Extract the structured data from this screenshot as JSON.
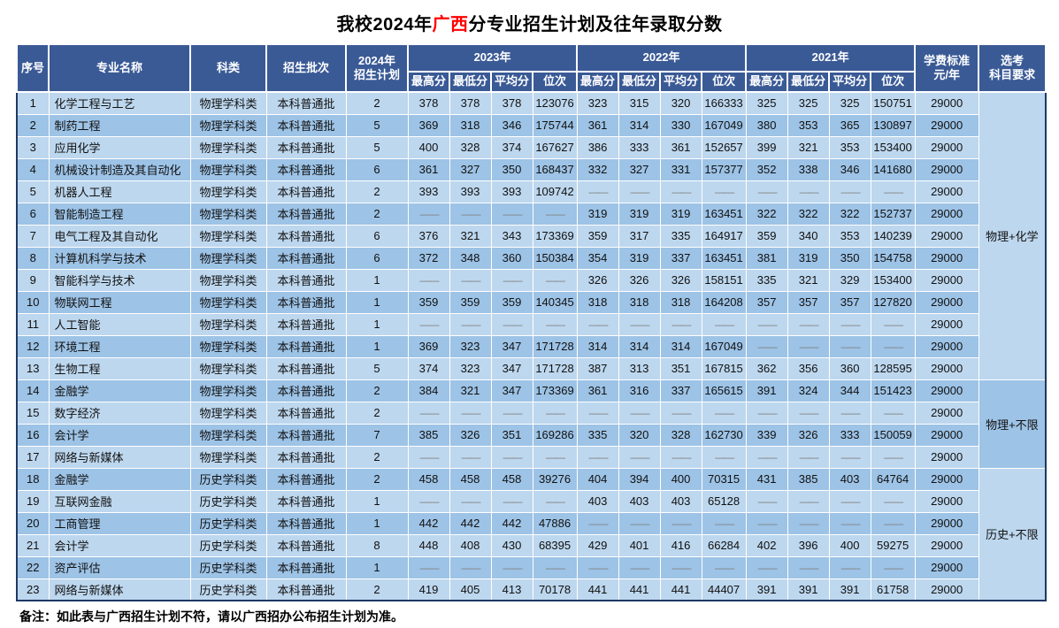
{
  "title": {
    "prefix": "我校2024年",
    "highlight": "广西",
    "suffix": "分专业招生计划及往年录取分数"
  },
  "colors": {
    "header_bg": "#3A5A96",
    "row_light": "#BDD7EE",
    "row_medium": "#9DC3E6",
    "outer_border": "#1F3864",
    "title_highlight": "#FF0000",
    "dash_gray": "#7F7F7F"
  },
  "header": {
    "seq": "序号",
    "major": "专业名称",
    "category": "科类",
    "batch": "招生批次",
    "plan_line1": "2024年",
    "plan_line2": "招生计划",
    "year_2023": "2023年",
    "year_2022": "2022年",
    "year_2021": "2021年",
    "sub_labels": [
      "最高分",
      "最低分",
      "平均分",
      "位次"
    ],
    "fee_line1": "学费标准",
    "fee_line2": "元/年",
    "req_line1": "选考",
    "req_line2": "科目要求"
  },
  "subject_groups": [
    {
      "label": "物理+化学",
      "start": 1,
      "span": 13,
      "tone": "light"
    },
    {
      "label": "物理+不限",
      "start": 14,
      "span": 4,
      "tone": "medium"
    },
    {
      "label": "历史+不限",
      "start": 18,
      "span": 6,
      "tone": "light"
    }
  ],
  "rows": [
    {
      "seq": "1",
      "major": "化学工程与工艺",
      "category": "物理学科类",
      "batch": "本科普通批",
      "plan": "2",
      "y2023": [
        "378",
        "378",
        "378",
        "123076"
      ],
      "y2022": [
        "323",
        "315",
        "320",
        "166333"
      ],
      "y2021": [
        "325",
        "325",
        "325",
        "150751"
      ],
      "fee": "29000"
    },
    {
      "seq": "2",
      "major": "制药工程",
      "category": "物理学科类",
      "batch": "本科普通批",
      "plan": "5",
      "y2023": [
        "369",
        "318",
        "346",
        "175744"
      ],
      "y2022": [
        "361",
        "314",
        "330",
        "167049"
      ],
      "y2021": [
        "380",
        "353",
        "365",
        "130897"
      ],
      "fee": "29000"
    },
    {
      "seq": "3",
      "major": "应用化学",
      "category": "物理学科类",
      "batch": "本科普通批",
      "plan": "5",
      "y2023": [
        "400",
        "328",
        "374",
        "167627"
      ],
      "y2022": [
        "386",
        "333",
        "361",
        "152657"
      ],
      "y2021": [
        "399",
        "321",
        "353",
        "153400"
      ],
      "fee": "29000"
    },
    {
      "seq": "4",
      "major": "机械设计制造及其自动化",
      "category": "物理学科类",
      "batch": "本科普通批",
      "plan": "6",
      "y2023": [
        "361",
        "327",
        "350",
        "168437"
      ],
      "y2022": [
        "332",
        "327",
        "331",
        "157377"
      ],
      "y2021": [
        "352",
        "338",
        "346",
        "141680"
      ],
      "fee": "29000"
    },
    {
      "seq": "5",
      "major": "机器人工程",
      "category": "物理学科类",
      "batch": "本科普通批",
      "plan": "2",
      "y2023": [
        "393",
        "393",
        "393",
        "109742"
      ],
      "y2022": [
        "——",
        "——",
        "——",
        "——"
      ],
      "y2021": [
        "——",
        "——",
        "——",
        "——"
      ],
      "fee": "29000"
    },
    {
      "seq": "6",
      "major": "智能制造工程",
      "category": "物理学科类",
      "batch": "本科普通批",
      "plan": "2",
      "y2023": [
        "——",
        "——",
        "——",
        "——"
      ],
      "y2022": [
        "319",
        "319",
        "319",
        "163451"
      ],
      "y2021": [
        "322",
        "322",
        "322",
        "152737"
      ],
      "fee": "29000"
    },
    {
      "seq": "7",
      "major": "电气工程及其自动化",
      "category": "物理学科类",
      "batch": "本科普通批",
      "plan": "6",
      "y2023": [
        "376",
        "321",
        "343",
        "173369"
      ],
      "y2022": [
        "359",
        "317",
        "335",
        "164917"
      ],
      "y2021": [
        "359",
        "340",
        "353",
        "140239"
      ],
      "fee": "29000"
    },
    {
      "seq": "8",
      "major": "计算机科学与技术",
      "category": "物理学科类",
      "batch": "本科普通批",
      "plan": "6",
      "y2023": [
        "372",
        "348",
        "360",
        "150384"
      ],
      "y2022": [
        "354",
        "319",
        "337",
        "163451"
      ],
      "y2021": [
        "381",
        "319",
        "350",
        "154758"
      ],
      "fee": "29000"
    },
    {
      "seq": "9",
      "major": "智能科学与技术",
      "category": "物理学科类",
      "batch": "本科普通批",
      "plan": "1",
      "y2023": [
        "——",
        "——",
        "——",
        "——"
      ],
      "y2022": [
        "326",
        "326",
        "326",
        "158151"
      ],
      "y2021": [
        "335",
        "321",
        "329",
        "153400"
      ],
      "fee": "29000"
    },
    {
      "seq": "10",
      "major": "物联网工程",
      "category": "物理学科类",
      "batch": "本科普通批",
      "plan": "1",
      "y2023": [
        "359",
        "359",
        "359",
        "140345"
      ],
      "y2022": [
        "318",
        "318",
        "318",
        "164208"
      ],
      "y2021": [
        "357",
        "357",
        "357",
        "127820"
      ],
      "fee": "29000"
    },
    {
      "seq": "11",
      "major": "人工智能",
      "category": "物理学科类",
      "batch": "本科普通批",
      "plan": "1",
      "y2023": [
        "——",
        "——",
        "——",
        "——"
      ],
      "y2022": [
        "——",
        "——",
        "——",
        "——"
      ],
      "y2021": [
        "——",
        "——",
        "——",
        "——"
      ],
      "fee": "29000"
    },
    {
      "seq": "12",
      "major": "环境工程",
      "category": "物理学科类",
      "batch": "本科普通批",
      "plan": "1",
      "y2023": [
        "369",
        "323",
        "347",
        "171728"
      ],
      "y2022": [
        "314",
        "314",
        "314",
        "167049"
      ],
      "y2021": [
        "——",
        "——",
        "——",
        "——"
      ],
      "fee": "29000"
    },
    {
      "seq": "13",
      "major": "生物工程",
      "category": "物理学科类",
      "batch": "本科普通批",
      "plan": "5",
      "y2023": [
        "374",
        "323",
        "347",
        "171728"
      ],
      "y2022": [
        "387",
        "313",
        "351",
        "167815"
      ],
      "y2021": [
        "362",
        "356",
        "360",
        "128595"
      ],
      "fee": "29000"
    },
    {
      "seq": "14",
      "major": "金融学",
      "category": "物理学科类",
      "batch": "本科普通批",
      "plan": "2",
      "y2023": [
        "384",
        "321",
        "347",
        "173369"
      ],
      "y2022": [
        "361",
        "316",
        "337",
        "165615"
      ],
      "y2021": [
        "391",
        "324",
        "344",
        "151423"
      ],
      "fee": "29000"
    },
    {
      "seq": "15",
      "major": "数字经济",
      "category": "物理学科类",
      "batch": "本科普通批",
      "plan": "2",
      "y2023": [
        "——",
        "——",
        "——",
        "——"
      ],
      "y2022": [
        "——",
        "——",
        "——",
        "——"
      ],
      "y2021": [
        "——",
        "——",
        "——",
        "——"
      ],
      "fee": "29000"
    },
    {
      "seq": "16",
      "major": "会计学",
      "category": "物理学科类",
      "batch": "本科普通批",
      "plan": "7",
      "y2023": [
        "385",
        "326",
        "351",
        "169286"
      ],
      "y2022": [
        "335",
        "320",
        "328",
        "162730"
      ],
      "y2021": [
        "339",
        "326",
        "333",
        "150059"
      ],
      "fee": "29000"
    },
    {
      "seq": "17",
      "major": "网络与新媒体",
      "category": "物理学科类",
      "batch": "本科普通批",
      "plan": "2",
      "y2023": [
        "——",
        "——",
        "——",
        "——"
      ],
      "y2022": [
        "——",
        "——",
        "——",
        "——"
      ],
      "y2021": [
        "——",
        "——",
        "——",
        "——"
      ],
      "fee": "29000"
    },
    {
      "seq": "18",
      "major": "金融学",
      "category": "历史学科类",
      "batch": "本科普通批",
      "plan": "2",
      "y2023": [
        "458",
        "458",
        "458",
        "39276"
      ],
      "y2022": [
        "404",
        "394",
        "400",
        "70315"
      ],
      "y2021": [
        "431",
        "385",
        "403",
        "64764"
      ],
      "fee": "29000"
    },
    {
      "seq": "19",
      "major": "互联网金融",
      "category": "历史学科类",
      "batch": "本科普通批",
      "plan": "1",
      "y2023": [
        "——",
        "——",
        "——",
        "——"
      ],
      "y2022": [
        "403",
        "403",
        "403",
        "65128"
      ],
      "y2021": [
        "——",
        "——",
        "——",
        "——"
      ],
      "fee": "29000"
    },
    {
      "seq": "20",
      "major": "工商管理",
      "category": "历史学科类",
      "batch": "本科普通批",
      "plan": "1",
      "y2023": [
        "442",
        "442",
        "442",
        "47886"
      ],
      "y2022": [
        "——",
        "——",
        "——",
        "——"
      ],
      "y2021": [
        "——",
        "——",
        "——",
        "——"
      ],
      "fee": "29000"
    },
    {
      "seq": "21",
      "major": "会计学",
      "category": "历史学科类",
      "batch": "本科普通批",
      "plan": "8",
      "y2023": [
        "448",
        "408",
        "430",
        "68395"
      ],
      "y2022": [
        "429",
        "401",
        "416",
        "66284"
      ],
      "y2021": [
        "402",
        "396",
        "400",
        "59275"
      ],
      "fee": "29000"
    },
    {
      "seq": "22",
      "major": "资产评估",
      "category": "历史学科类",
      "batch": "本科普通批",
      "plan": "1",
      "y2023": [
        "——",
        "——",
        "——",
        "——"
      ],
      "y2022": [
        "——",
        "——",
        "——",
        "——"
      ],
      "y2021": [
        "——",
        "——",
        "——",
        "——"
      ],
      "fee": "29000"
    },
    {
      "seq": "23",
      "major": "网络与新媒体",
      "category": "历史学科类",
      "batch": "本科普通批",
      "plan": "2",
      "y2023": [
        "419",
        "405",
        "413",
        "70178"
      ],
      "y2022": [
        "441",
        "441",
        "441",
        "44407"
      ],
      "y2021": [
        "391",
        "391",
        "391",
        "61758"
      ],
      "fee": "29000"
    }
  ],
  "note": "备注：如此表与广西招生计划不符，请以广西招办公布招生计划为准。"
}
